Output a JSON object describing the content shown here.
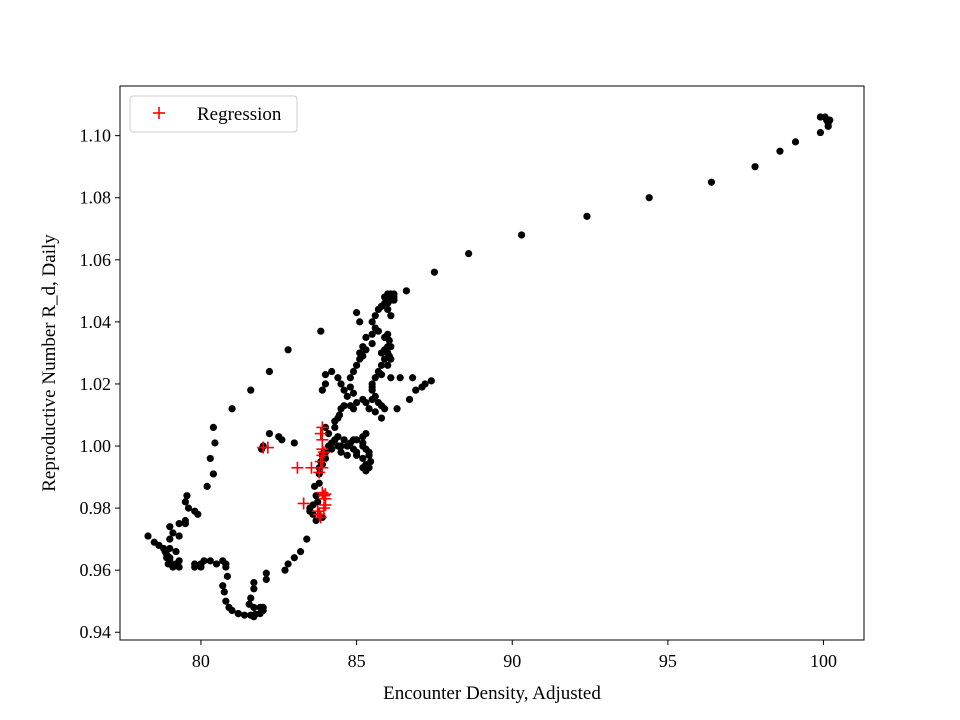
{
  "chart_data": {
    "type": "scatter",
    "title": "",
    "xlabel": "Encounter Density, Adjusted",
    "ylabel": "Reproductive Number R_d, Daily",
    "xlim": [
      77.4,
      101.3
    ],
    "ylim": [
      0.9375,
      1.116
    ],
    "xticks": [
      80,
      85,
      90,
      95,
      100
    ],
    "yticks": [
      0.94,
      0.96,
      0.98,
      1.0,
      1.02,
      1.04,
      1.06,
      1.08,
      1.1
    ],
    "xtick_labels": [
      "80",
      "85",
      "90",
      "95",
      "100"
    ],
    "ytick_labels": [
      "0.94",
      "0.96",
      "0.98",
      "1.00",
      "1.02",
      "1.04",
      "1.06",
      "1.08",
      "1.10"
    ],
    "grid": false,
    "legend": {
      "position": "top-left",
      "entries": [
        "Regression"
      ]
    },
    "series": [
      {
        "marker": "dot",
        "color": "#000000",
        "points": [
          [
            78.3,
            0.971
          ],
          [
            78.5,
            0.969
          ],
          [
            78.65,
            0.968
          ],
          [
            78.8,
            0.967
          ],
          [
            78.9,
            0.965
          ],
          [
            79.0,
            0.964
          ],
          [
            78.95,
            0.962
          ],
          [
            79.1,
            0.961
          ],
          [
            79.2,
            0.962
          ],
          [
            79.3,
            0.961
          ],
          [
            79.0,
            0.97
          ],
          [
            79.0,
            0.974
          ],
          [
            79.3,
            0.975
          ],
          [
            79.5,
            0.976
          ],
          [
            79.6,
            0.98
          ],
          [
            79.5,
            0.982
          ],
          [
            79.55,
            0.984
          ],
          [
            79.8,
            0.979
          ],
          [
            79.9,
            0.978
          ],
          [
            79.8,
            0.962
          ],
          [
            79.8,
            0.961
          ],
          [
            80.0,
            0.962
          ],
          [
            80.1,
            0.963
          ],
          [
            80.3,
            0.963
          ],
          [
            80.5,
            0.962
          ],
          [
            80.7,
            0.963
          ],
          [
            80.8,
            0.961
          ],
          [
            80.85,
            0.958
          ],
          [
            80.7,
            0.955
          ],
          [
            80.75,
            0.953
          ],
          [
            80.8,
            0.95
          ],
          [
            80.9,
            0.948
          ],
          [
            81.0,
            0.947
          ],
          [
            81.2,
            0.946
          ],
          [
            81.4,
            0.9455
          ],
          [
            81.6,
            0.9455
          ],
          [
            81.75,
            0.9458
          ],
          [
            81.9,
            0.946
          ],
          [
            82.0,
            0.947
          ],
          [
            82.0,
            0.948
          ],
          [
            81.7,
            0.948
          ],
          [
            81.55,
            0.949
          ],
          [
            81.6,
            0.951
          ],
          [
            81.7,
            0.954
          ],
          [
            81.7,
            0.956
          ],
          [
            82.1,
            0.957
          ],
          [
            82.1,
            0.959
          ],
          [
            82.7,
            0.96
          ],
          [
            82.8,
            0.962
          ],
          [
            83.0,
            0.964
          ],
          [
            83.2,
            0.966
          ],
          [
            83.4,
            0.97
          ],
          [
            83.6,
            0.978
          ],
          [
            83.5,
            0.979
          ],
          [
            83.6,
            0.981
          ],
          [
            83.7,
            0.984
          ],
          [
            83.65,
            0.987
          ],
          [
            83.8,
            0.988
          ],
          [
            83.8,
            0.991
          ],
          [
            83.8,
            0.993
          ],
          [
            83.9,
            0.994
          ],
          [
            84.0,
            0.996
          ],
          [
            84.0,
            0.998
          ],
          [
            84.1,
            1.0
          ],
          [
            84.2,
            1.001
          ],
          [
            84.3,
            1.002
          ],
          [
            84.5,
            1.0
          ],
          [
            84.7,
            1.0
          ],
          [
            84.9,
            0.999
          ],
          [
            85.0,
            0.997
          ],
          [
            85.2,
            0.996
          ],
          [
            85.3,
            0.994
          ],
          [
            85.2,
            0.993
          ],
          [
            85.3,
            0.992
          ],
          [
            85.4,
            0.993
          ],
          [
            85.45,
            0.995
          ],
          [
            85.4,
            0.997
          ],
          [
            85.4,
            0.998
          ],
          [
            85.2,
            1.0
          ],
          [
            85.2,
            1.003
          ],
          [
            85.3,
            1.004
          ],
          [
            85.0,
            1.002
          ],
          [
            84.8,
            1.001
          ],
          [
            84.6,
            1.002
          ],
          [
            84.4,
            1.003
          ],
          [
            84.3,
            1.006
          ],
          [
            84.3,
            1.008
          ],
          [
            84.45,
            1.01
          ],
          [
            84.5,
            1.012
          ],
          [
            84.6,
            1.013
          ],
          [
            84.8,
            1.013
          ],
          [
            85.0,
            1.014
          ],
          [
            85.3,
            1.014
          ],
          [
            85.5,
            1.015
          ],
          [
            85.6,
            1.016
          ],
          [
            85.7,
            1.014
          ],
          [
            85.8,
            1.013
          ],
          [
            85.9,
            1.012
          ],
          [
            85.8,
            1.009
          ],
          [
            85.6,
            1.011
          ],
          [
            85.4,
            1.012
          ],
          [
            85.5,
            1.018
          ],
          [
            85.5,
            1.02
          ],
          [
            85.6,
            1.022
          ],
          [
            85.7,
            1.024
          ],
          [
            85.8,
            1.026
          ],
          [
            85.9,
            1.028
          ],
          [
            86.0,
            1.03
          ],
          [
            86.1,
            1.032
          ],
          [
            85.9,
            1.035
          ],
          [
            85.7,
            1.037
          ],
          [
            85.6,
            1.038
          ],
          [
            85.5,
            1.04
          ],
          [
            85.6,
            1.042
          ],
          [
            85.7,
            1.044
          ],
          [
            85.8,
            1.045
          ],
          [
            85.9,
            1.046
          ],
          [
            86.0,
            1.047
          ],
          [
            86.1,
            1.048
          ],
          [
            86.2,
            1.049
          ],
          [
            86.6,
            1.05
          ],
          [
            85.5,
            1.033
          ],
          [
            85.3,
            1.031
          ],
          [
            85.2,
            1.029
          ],
          [
            85.1,
            1.028
          ],
          [
            85.0,
            1.026
          ],
          [
            84.9,
            1.024
          ],
          [
            84.8,
            1.022
          ],
          [
            84.8,
            1.019
          ],
          [
            84.9,
            1.017
          ],
          [
            84.7,
            1.016
          ],
          [
            84.6,
            1.018
          ],
          [
            84.5,
            1.02
          ],
          [
            84.4,
            1.022
          ],
          [
            84.2,
            1.024
          ],
          [
            84.0,
            1.023
          ],
          [
            84.0,
            1.02
          ],
          [
            83.9,
            1.018
          ],
          [
            83.85,
            1.037
          ],
          [
            85.0,
            1.043
          ],
          [
            85.1,
            1.04
          ],
          [
            85.5,
            1.036
          ],
          [
            86.0,
            1.026
          ],
          [
            86.1,
            1.022
          ],
          [
            86.4,
            1.022
          ],
          [
            86.3,
            1.012
          ],
          [
            86.7,
            1.015
          ],
          [
            86.9,
            1.018
          ],
          [
            87.1,
            1.019
          ],
          [
            87.2,
            1.02
          ],
          [
            87.4,
            1.021
          ],
          [
            86.8,
            1.022
          ],
          [
            85.8,
            1.023
          ],
          [
            85.5,
            1.019
          ],
          [
            85.2,
            1.015
          ],
          [
            84.9,
            1.012
          ],
          [
            84.4,
            1.009
          ],
          [
            84.1,
            1.004
          ],
          [
            84.0,
            1.006
          ],
          [
            83.95,
            0.998
          ],
          [
            84.5,
            0.998
          ],
          [
            84.7,
            0.997
          ],
          [
            85.0,
            0.998
          ],
          [
            85.3,
            0.999
          ],
          [
            85.2,
            1.001
          ],
          [
            84.9,
            1.002
          ],
          [
            84.7,
            1.0
          ],
          [
            84.4,
            1.0
          ],
          [
            84.2,
            0.999
          ],
          [
            83.9,
            0.997
          ],
          [
            83.85,
            0.995
          ],
          [
            83.5,
            0.98
          ],
          [
            83.7,
            0.976
          ],
          [
            83.9,
            0.977
          ],
          [
            83.75,
            0.982
          ],
          [
            83.0,
            1.001
          ],
          [
            82.6,
            1.002
          ],
          [
            82.5,
            1.003
          ],
          [
            82.2,
            1.004
          ],
          [
            82.0,
            1.0
          ],
          [
            81.95,
            0.999
          ],
          [
            80.4,
            1.006
          ],
          [
            80.45,
            1.001
          ],
          [
            80.4,
            0.991
          ],
          [
            80.3,
            0.996
          ],
          [
            80.2,
            0.987
          ],
          [
            79.5,
            0.975
          ],
          [
            79.3,
            0.971
          ],
          [
            79.0,
            0.967
          ],
          [
            78.85,
            0.966
          ],
          [
            79.1,
            0.972
          ],
          [
            79.3,
            0.963
          ],
          [
            80.0,
            0.961
          ],
          [
            80.8,
            0.962
          ],
          [
            81.2,
            0.946
          ],
          [
            81.7,
            0.945
          ],
          [
            81.9,
            0.948
          ],
          [
            79.0,
            0.963
          ],
          [
            79.2,
            0.966
          ],
          [
            78.9,
            0.964
          ],
          [
            85.8,
            1.045
          ],
          [
            85.9,
            1.048
          ],
          [
            86.0,
            1.049
          ],
          [
            86.1,
            1.047
          ],
          [
            86.2,
            1.048
          ],
          [
            86.0,
            1.046
          ],
          [
            86.2,
            1.047
          ],
          [
            86.1,
            1.049
          ],
          [
            86.0,
            1.044
          ],
          [
            86.1,
            1.042
          ],
          [
            85.8,
            1.03
          ],
          [
            85.9,
            1.031
          ],
          [
            86.0,
            1.032
          ],
          [
            86.05,
            1.029
          ],
          [
            86.1,
            1.028
          ],
          [
            86.05,
            1.034
          ],
          [
            86.0,
            1.036
          ],
          [
            85.3,
            1.035
          ],
          [
            85.2,
            1.032
          ],
          [
            85.1,
            1.03
          ],
          [
            81.0,
            1.012
          ],
          [
            81.6,
            1.018
          ],
          [
            82.2,
            1.024
          ],
          [
            82.8,
            1.031
          ],
          [
            87.5,
            1.056
          ],
          [
            88.6,
            1.062
          ],
          [
            90.3,
            1.068
          ],
          [
            92.4,
            1.074
          ],
          [
            94.4,
            1.08
          ],
          [
            96.4,
            1.085
          ],
          [
            97.8,
            1.09
          ],
          [
            98.6,
            1.095
          ],
          [
            99.1,
            1.098
          ],
          [
            99.9,
            1.101
          ],
          [
            99.9,
            1.106
          ],
          [
            100.05,
            1.106
          ],
          [
            100.15,
            1.104
          ],
          [
            100.1,
            1.105
          ],
          [
            100.15,
            1.103
          ],
          [
            100.2,
            1.105
          ]
        ]
      },
      {
        "name": "Regression",
        "marker": "plus",
        "color": "#ff0000",
        "points": [
          [
            82.0,
            0.9995
          ],
          [
            82.15,
            0.9995
          ],
          [
            83.1,
            0.993
          ],
          [
            83.55,
            0.993
          ],
          [
            83.3,
            0.9815
          ],
          [
            83.75,
            0.979
          ],
          [
            83.8,
            0.978
          ],
          [
            83.85,
            0.977
          ],
          [
            83.95,
            0.98
          ],
          [
            84.0,
            0.981
          ],
          [
            84.0,
            0.983
          ],
          [
            83.95,
            0.984
          ],
          [
            83.9,
            0.985
          ],
          [
            84.0,
            0.9845
          ],
          [
            83.8,
            0.9915
          ],
          [
            83.9,
            0.993
          ],
          [
            83.85,
            0.995
          ],
          [
            83.9,
            0.997
          ],
          [
            83.95,
            0.998
          ],
          [
            83.9,
            0.999
          ],
          [
            83.9,
            1.002
          ],
          [
            83.9,
            1.006
          ],
          [
            83.85,
            1.004
          ]
        ]
      }
    ]
  }
}
